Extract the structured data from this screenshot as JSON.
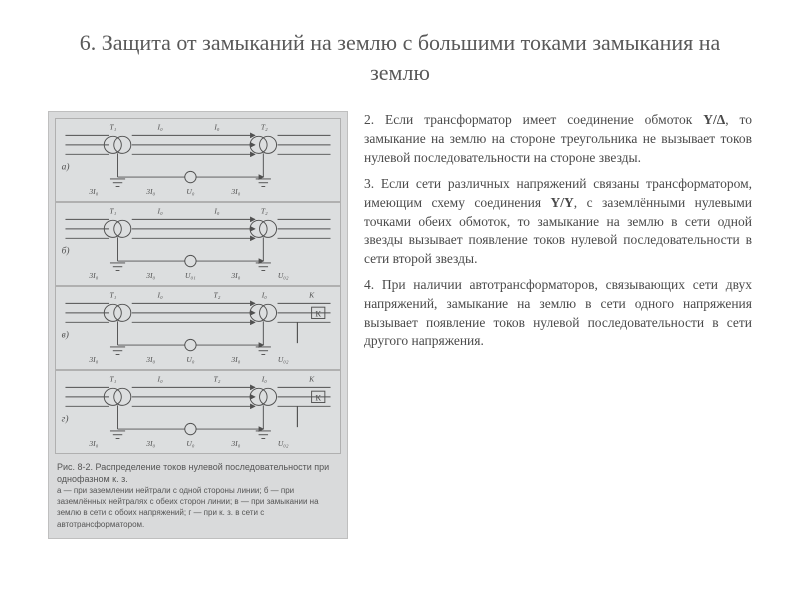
{
  "title": "6. Защита от замыканий на землю с большими токами замыкания на землю",
  "figure": {
    "caption_title": "Рис. 8-2. Распределение токов нулевой последовательности при однофазном к. з.",
    "caption_sub": "а — при заземлении нейтрали с одной стороны линии; б — при заземлённых нейтралях с обеих сторон линии; в — при замыкании на землю в сети с обоих напряжений; г — при к. з. в сети с автотрансформатором.",
    "diagrams": [
      {
        "label": "а)",
        "labels_top": [
          "T₁",
          "I₀",
          "I₀",
          "T₂"
        ],
        "labels_bot": [
          "3I₀",
          "3I₀",
          "U₀",
          "3I₀"
        ]
      },
      {
        "label": "б)",
        "labels_top": [
          "T₁",
          "I₀",
          "I₀",
          "T₂"
        ],
        "labels_bot": [
          "3I₀",
          "3I₀",
          "U₀₁",
          "3I₀",
          "U₀₂"
        ]
      },
      {
        "label": "в)",
        "labels_top": [
          "T₁",
          "I₀",
          "T₂",
          "I₀",
          "К"
        ],
        "labels_bot": [
          "3I₀",
          "3I₀",
          "U₀",
          "3I₀",
          "U₀₂"
        ]
      },
      {
        "label": "г)",
        "labels_top": [
          "T₁",
          "I₀",
          "T₂",
          "I₀",
          "К"
        ],
        "labels_bot": [
          "3I₀",
          "3I₀",
          "U₀",
          "3I₀",
          "U₀₂"
        ]
      }
    ]
  },
  "paragraphs": [
    {
      "num": "2.",
      "text": "Если трансформатор имеет соединение обмоток <strong>Y/Δ</strong>, то замыкание на землю на стороне треугольника не вызывает токов нулевой последовательности на стороне звезды."
    },
    {
      "num": "3.",
      "text": "Если сети различных напряжений связаны трансформатором, имеющим схему соединения <strong>Y/Y</strong>, с заземлёнными нулевыми точками обеих обмоток, то замыкание на землю в сети одной звезды вызывает появление токов нулевой последовательности в сети второй звезды."
    },
    {
      "num": "4.",
      "text": "При наличии автотрансформаторов, связывающих сети двух напряжений, замыкание на землю в сети одного напряжения вызывает появление токов нулевой последовательности в сети другого напряжения."
    }
  ],
  "colors": {
    "title": "#595959",
    "body": "#4a4a4a",
    "figure_bg": "#d9dadb",
    "stroke": "#505050"
  }
}
